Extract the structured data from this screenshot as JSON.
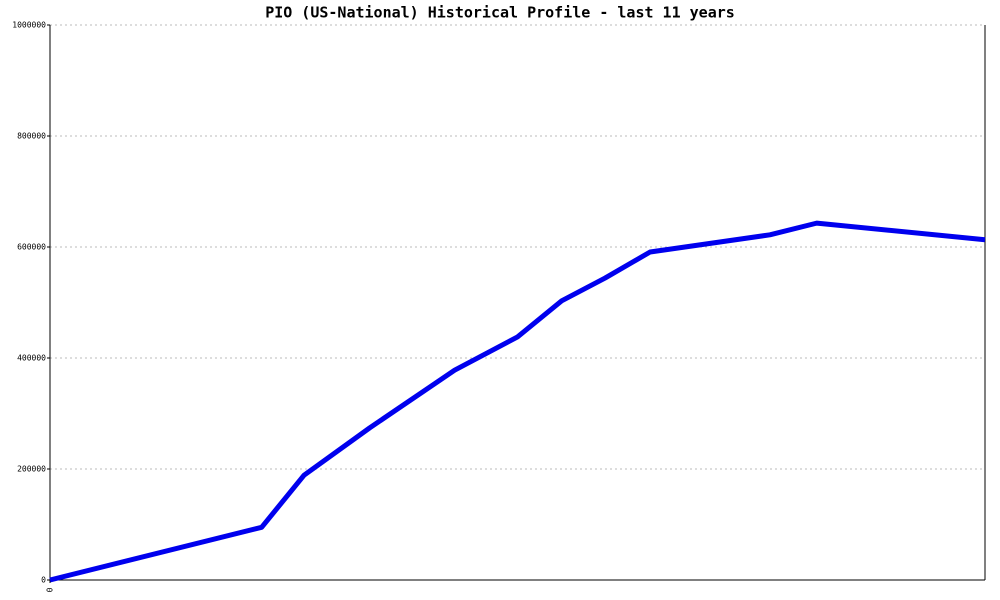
{
  "chart_data": {
    "type": "line",
    "title": "PIO (US-National) Historical Profile - last 11 years",
    "x": [
      0,
      2.49,
      2.99,
      3.76,
      4.76,
      5.5,
      6.02,
      6.53,
      7.06,
      8.47,
      9.02,
      11
    ],
    "series": [
      {
        "color": "#0000ee",
        "values": [
          0,
          95000,
          189000,
          274000,
          378000,
          438000,
          503000,
          544000,
          591000,
          622000,
          643000,
          613000
        ]
      }
    ],
    "xlim": [
      0,
      11
    ],
    "xticks": [
      0
    ],
    "ylim": [
      0,
      1000000
    ],
    "yticks": [
      0,
      200000,
      400000,
      600000,
      800000,
      1000000
    ],
    "grid": true
  }
}
